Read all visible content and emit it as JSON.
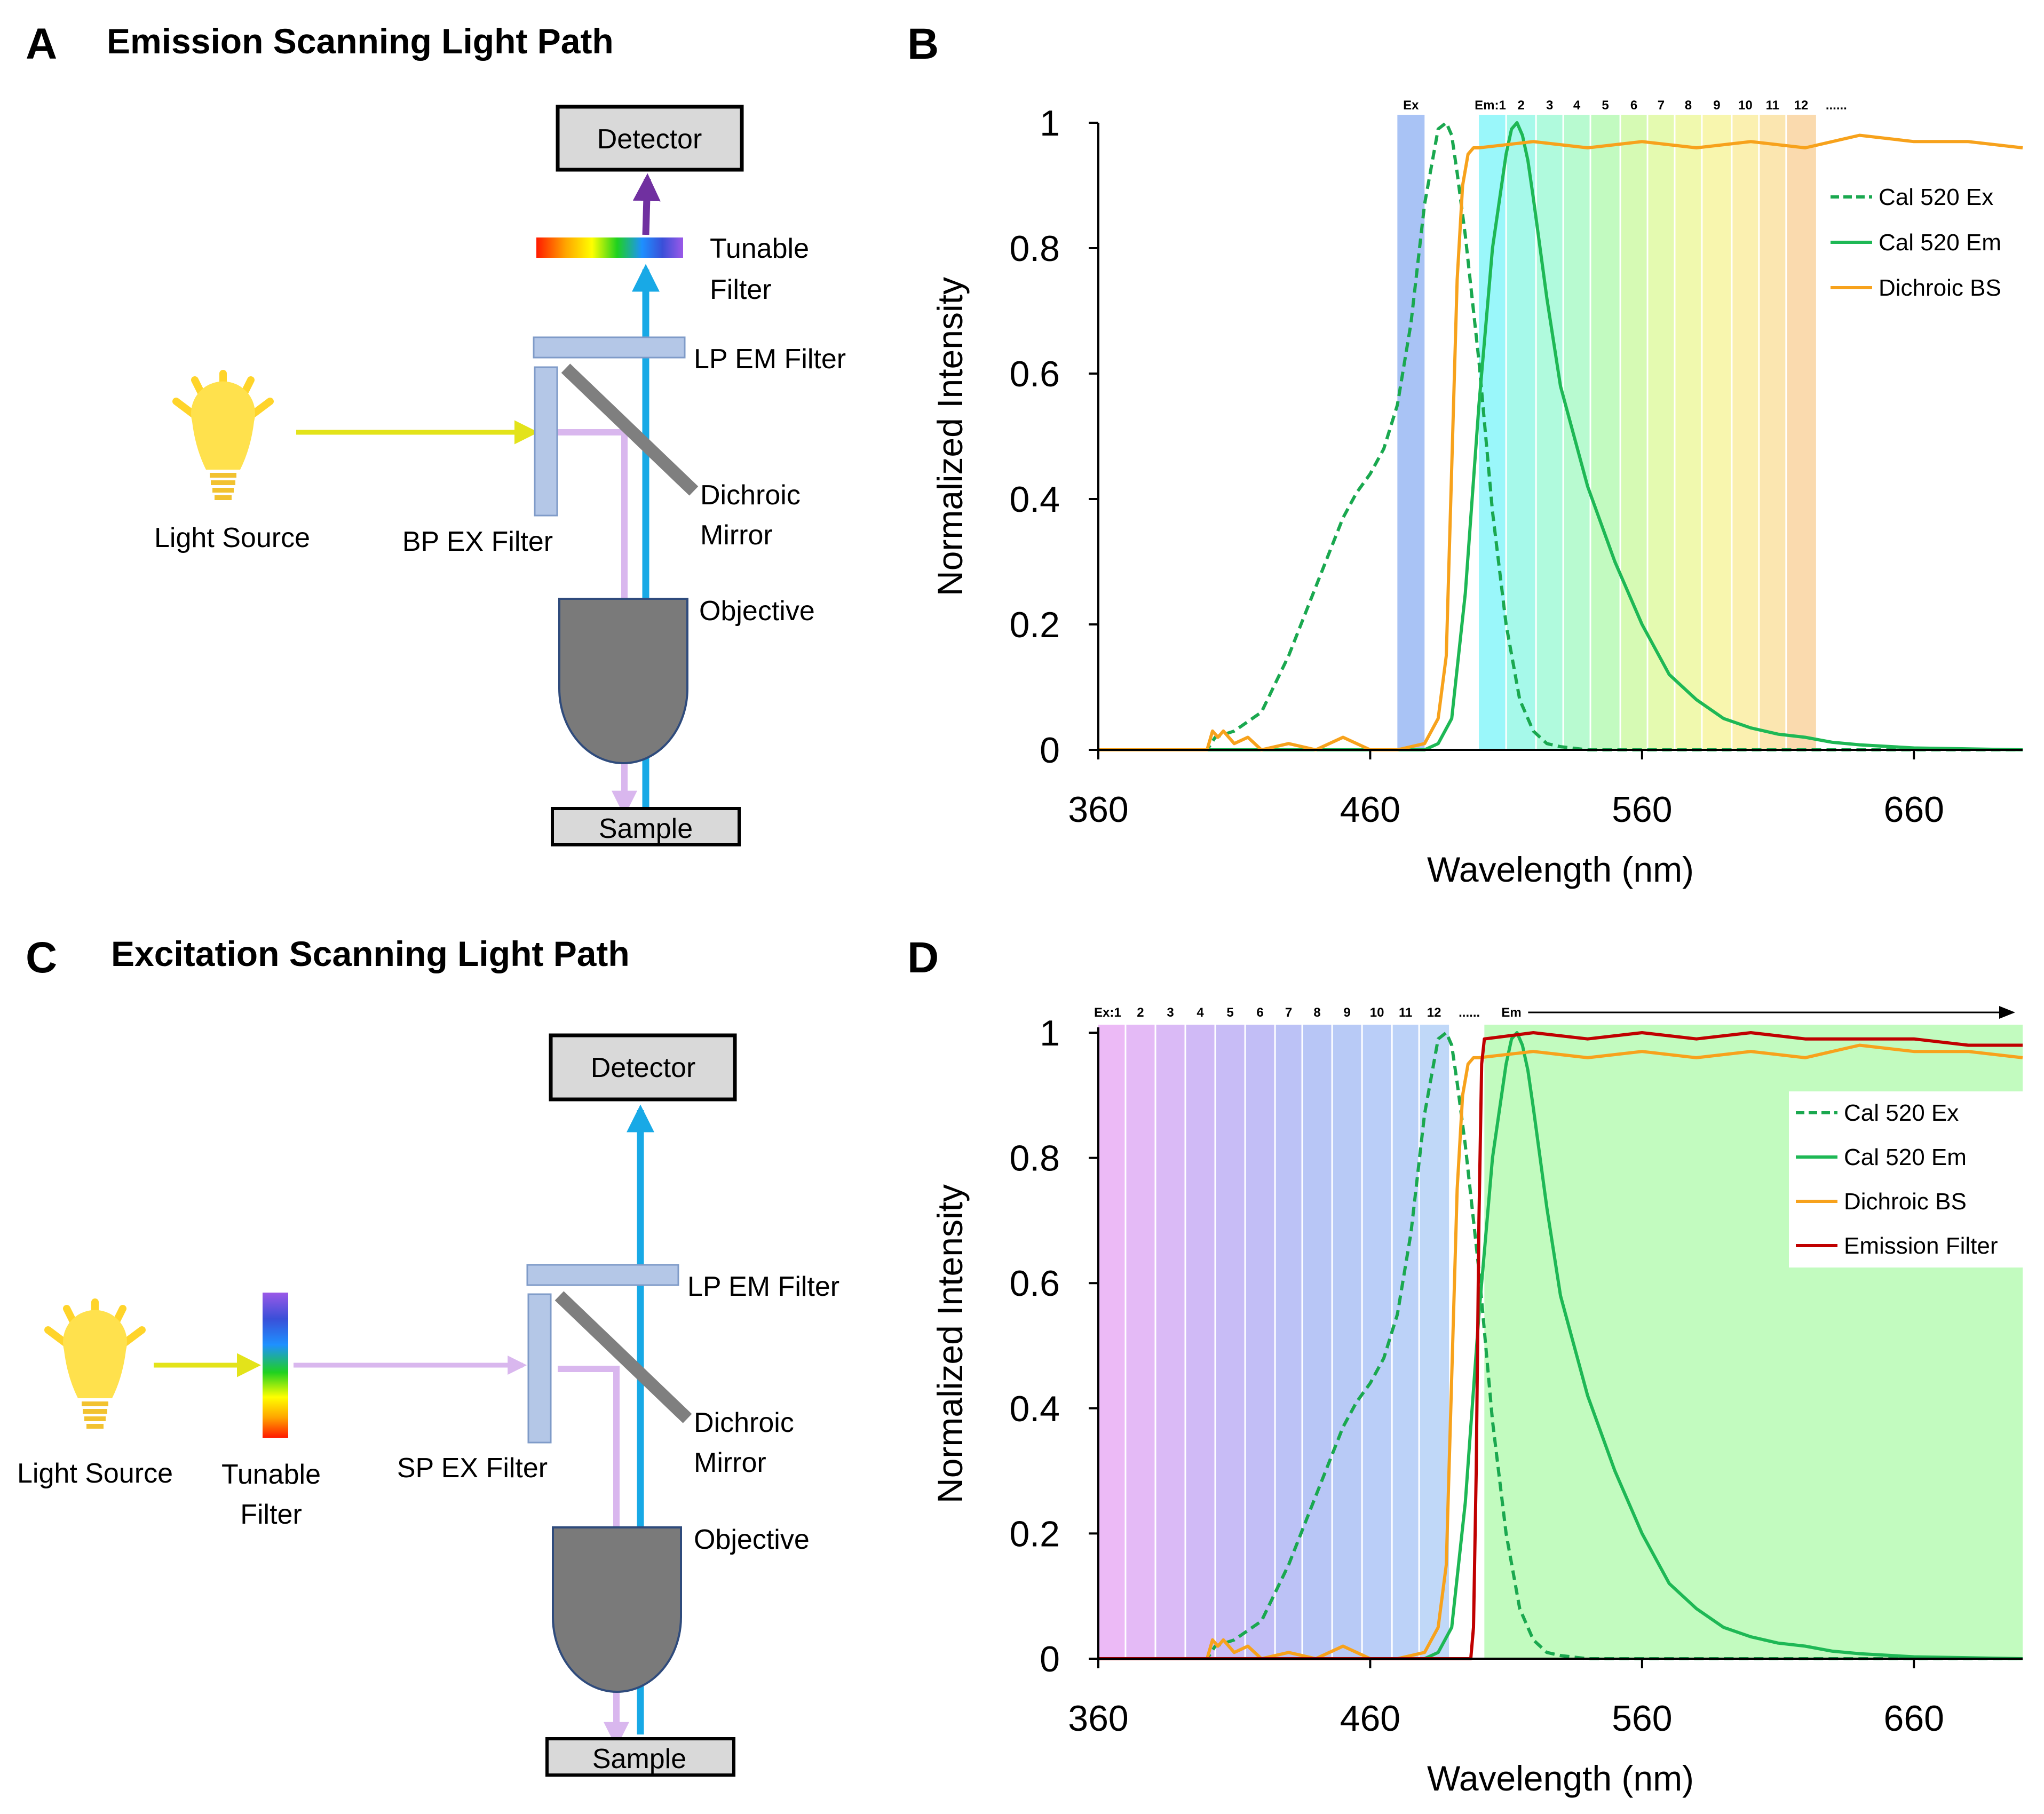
{
  "panels": {
    "a": {
      "letter": "A",
      "title": "Emission Scanning Light Path"
    },
    "b": {
      "letter": "B"
    },
    "c": {
      "letter": "C",
      "title": "Excitation Scanning Light Path"
    },
    "d": {
      "letter": "D"
    }
  },
  "diagram_a": {
    "detector": "Detector",
    "tunable_filter": [
      "Tunable",
      "Filter"
    ],
    "lp_em_filter": "LP EM Filter",
    "dichroic_mirror": [
      "Dichroic",
      "Mirror"
    ],
    "bp_ex_filter": "BP EX Filter",
    "light_source": "Light Source",
    "objective": "Objective",
    "sample": "Sample"
  },
  "diagram_c": {
    "detector": "Detector",
    "lp_em_filter": "LP EM Filter",
    "dichroic_mirror": [
      "Dichroic",
      "Mirror"
    ],
    "sp_ex_filter": "SP EX Filter",
    "tunable_filter": [
      "Tunable",
      "Filter"
    ],
    "light_source": "Light Source",
    "objective": "Objective",
    "sample": "Sample"
  },
  "colors": {
    "ex_dashed": "#1aa84f",
    "em_solid": "#1eb855",
    "dichroic": "#f7a21c",
    "emission_filter": "#c00000",
    "excitation_beam": "#d9b7ee",
    "emission_beam": "#18a9e6",
    "detected_beam": "#7030a0",
    "source_beam": "#e3e31a",
    "component_fill": "#b4c7e7",
    "objective": "#7a7a7a"
  },
  "chart_data": [
    {
      "id": "B",
      "type": "line",
      "xlabel": "Wavelength (nm)",
      "ylabel": "Normalized Intensity",
      "xlim": [
        360,
        700
      ],
      "ylim": [
        0,
        1
      ],
      "xticks": [
        "360",
        "460",
        "560",
        "660"
      ],
      "yticks": [
        "0",
        "0.2",
        "0.4",
        "0.6",
        "0.8",
        "1"
      ],
      "ex_band": {
        "label": "Ex",
        "range": [
          470,
          480
        ],
        "color": "#a9c3f5"
      },
      "em_prefix": "Em:",
      "em_bands": [
        {
          "label": "1",
          "range": [
            500,
            510
          ],
          "color": "#9af7fa"
        },
        {
          "label": "2",
          "range": [
            510,
            521
          ],
          "color": "#a6f9ea"
        },
        {
          "label": "3",
          "range": [
            521,
            531
          ],
          "color": "#b0fadd"
        },
        {
          "label": "4",
          "range": [
            531,
            541
          ],
          "color": "#b8fad0"
        },
        {
          "label": "5",
          "range": [
            541,
            552
          ],
          "color": "#c2fac0"
        },
        {
          "label": "6",
          "range": [
            552,
            562
          ],
          "color": "#d6fab4"
        },
        {
          "label": "7",
          "range": [
            562,
            572
          ],
          "color": "#e4fab0"
        },
        {
          "label": "8",
          "range": [
            572,
            582
          ],
          "color": "#f0f9ae"
        },
        {
          "label": "9",
          "range": [
            582,
            593
          ],
          "color": "#f8f6ae"
        },
        {
          "label": "10",
          "range": [
            593,
            603
          ],
          "color": "#fbf0b0"
        },
        {
          "label": "11",
          "range": [
            603,
            613
          ],
          "color": "#fbe6b0"
        },
        {
          "label": "12",
          "range": [
            613,
            624
          ],
          "color": "#fadaae"
        }
      ],
      "ellipsis": "......",
      "legend": [
        "Cal 520 Ex",
        "Cal 520 Em",
        "Dichroic BS"
      ],
      "series": [
        {
          "name": "Cal 520 Ex",
          "style": "dashed",
          "x": [
            360,
            400,
            403,
            410,
            420,
            430,
            440,
            450,
            455,
            460,
            465,
            470,
            475,
            480,
            485,
            488,
            490,
            492,
            495,
            500,
            505,
            510,
            515,
            520,
            525,
            530,
            540,
            700
          ],
          "y": [
            0.0,
            0.0,
            0.02,
            0.03,
            0.06,
            0.15,
            0.26,
            0.37,
            0.41,
            0.44,
            0.48,
            0.55,
            0.68,
            0.87,
            0.99,
            1.0,
            0.98,
            0.92,
            0.82,
            0.62,
            0.38,
            0.2,
            0.08,
            0.03,
            0.01,
            0.005,
            0.0,
            0.0
          ]
        },
        {
          "name": "Cal 520 Em",
          "style": "solid",
          "x": [
            360,
            480,
            485,
            490,
            495,
            500,
            505,
            510,
            512,
            514,
            516,
            518,
            520,
            525,
            530,
            540,
            550,
            560,
            570,
            580,
            590,
            600,
            610,
            620,
            630,
            640,
            660,
            700
          ],
          "y": [
            0.0,
            0.0,
            0.01,
            0.05,
            0.25,
            0.55,
            0.8,
            0.95,
            0.99,
            1.0,
            0.98,
            0.94,
            0.88,
            0.72,
            0.58,
            0.42,
            0.3,
            0.2,
            0.12,
            0.08,
            0.05,
            0.035,
            0.025,
            0.02,
            0.012,
            0.008,
            0.003,
            0.0
          ]
        },
        {
          "name": "Dichroic BS",
          "style": "solid",
          "x": [
            360,
            400,
            402,
            404,
            406,
            410,
            415,
            420,
            430,
            440,
            450,
            460,
            470,
            480,
            485,
            488,
            490,
            492,
            494,
            496,
            498,
            500,
            520,
            540,
            560,
            580,
            600,
            620,
            640,
            660,
            680,
            700
          ],
          "y": [
            0.0,
            0.0,
            0.03,
            0.02,
            0.03,
            0.01,
            0.02,
            0.0,
            0.01,
            0.0,
            0.02,
            0.0,
            0.0,
            0.01,
            0.05,
            0.15,
            0.45,
            0.75,
            0.9,
            0.95,
            0.96,
            0.96,
            0.97,
            0.96,
            0.97,
            0.96,
            0.97,
            0.96,
            0.98,
            0.97,
            0.97,
            0.96
          ]
        }
      ]
    },
    {
      "id": "D",
      "type": "line",
      "xlabel": "Wavelength (nm)",
      "ylabel": "Normalized Intensity",
      "xlim": [
        360,
        700
      ],
      "ylim": [
        0,
        1
      ],
      "xticks": [
        "360",
        "460",
        "560",
        "660"
      ],
      "yticks": [
        "0",
        "0.2",
        "0.4",
        "0.6",
        "0.8",
        "1"
      ],
      "ex_prefix": "Ex:",
      "ex_bands": [
        {
          "label": "1",
          "range": [
            360,
            370
          ],
          "color": "#ecbaf6"
        },
        {
          "label": "2",
          "range": [
            370,
            381
          ],
          "color": "#e4baf6"
        },
        {
          "label": "3",
          "range": [
            381,
            392
          ],
          "color": "#dabaf6"
        },
        {
          "label": "4",
          "range": [
            392,
            403
          ],
          "color": "#d0baf6"
        },
        {
          "label": "5",
          "range": [
            403,
            414
          ],
          "color": "#c8bcf6"
        },
        {
          "label": "6",
          "range": [
            414,
            425
          ],
          "color": "#c2bef6"
        },
        {
          "label": "7",
          "range": [
            425,
            435
          ],
          "color": "#bcc2f6"
        },
        {
          "label": "8",
          "range": [
            435,
            446
          ],
          "color": "#b8c6f6"
        },
        {
          "label": "9",
          "range": [
            446,
            457
          ],
          "color": "#b8caf6"
        },
        {
          "label": "10",
          "range": [
            457,
            468
          ],
          "color": "#bacef8"
        },
        {
          "label": "11",
          "range": [
            468,
            478
          ],
          "color": "#bcd2f8"
        },
        {
          "label": "12",
          "range": [
            478,
            489
          ],
          "color": "#c0d8f8"
        }
      ],
      "ellipsis": "......",
      "em_label": "Em",
      "em_band": {
        "range": [
          502,
          700
        ],
        "color": "#c2fbbf"
      },
      "legend": [
        "Cal 520 Ex",
        "Cal 520 Em",
        "Dichroic BS",
        "Emission Filter"
      ],
      "series": [
        {
          "name": "Cal 520 Ex",
          "style": "dashed",
          "x": [
            360,
            400,
            403,
            410,
            420,
            430,
            440,
            450,
            455,
            460,
            465,
            470,
            475,
            480,
            485,
            488,
            490,
            492,
            495,
            500,
            505,
            510,
            515,
            520,
            525,
            530,
            540,
            700
          ],
          "y": [
            0.0,
            0.0,
            0.02,
            0.03,
            0.06,
            0.15,
            0.26,
            0.37,
            0.41,
            0.44,
            0.48,
            0.55,
            0.68,
            0.87,
            0.99,
            1.0,
            0.98,
            0.92,
            0.82,
            0.62,
            0.38,
            0.2,
            0.08,
            0.03,
            0.01,
            0.005,
            0.0,
            0.0
          ]
        },
        {
          "name": "Cal 520 Em",
          "style": "solid",
          "x": [
            360,
            480,
            485,
            490,
            495,
            500,
            505,
            510,
            512,
            514,
            516,
            518,
            520,
            525,
            530,
            540,
            550,
            560,
            570,
            580,
            590,
            600,
            610,
            620,
            630,
            640,
            660,
            700
          ],
          "y": [
            0.0,
            0.0,
            0.01,
            0.05,
            0.25,
            0.55,
            0.8,
            0.95,
            0.99,
            1.0,
            0.98,
            0.94,
            0.88,
            0.72,
            0.58,
            0.42,
            0.3,
            0.2,
            0.12,
            0.08,
            0.05,
            0.035,
            0.025,
            0.02,
            0.012,
            0.008,
            0.003,
            0.0
          ]
        },
        {
          "name": "Dichroic BS",
          "style": "solid",
          "x": [
            360,
            400,
            402,
            404,
            406,
            410,
            415,
            420,
            430,
            440,
            450,
            460,
            470,
            480,
            485,
            488,
            490,
            492,
            494,
            496,
            498,
            500,
            520,
            540,
            560,
            580,
            600,
            620,
            640,
            660,
            680,
            700
          ],
          "y": [
            0.0,
            0.0,
            0.03,
            0.02,
            0.03,
            0.01,
            0.02,
            0.0,
            0.01,
            0.0,
            0.02,
            0.0,
            0.0,
            0.01,
            0.05,
            0.15,
            0.45,
            0.75,
            0.9,
            0.95,
            0.96,
            0.96,
            0.97,
            0.96,
            0.97,
            0.96,
            0.97,
            0.96,
            0.98,
            0.97,
            0.97,
            0.96
          ]
        },
        {
          "name": "Emission Filter",
          "style": "solid",
          "x": [
            360,
            497,
            498,
            499,
            500,
            501,
            502,
            520,
            540,
            560,
            580,
            600,
            620,
            640,
            660,
            680,
            700
          ],
          "y": [
            0.0,
            0.0,
            0.05,
            0.3,
            0.7,
            0.95,
            0.99,
            1.0,
            0.99,
            1.0,
            0.99,
            1.0,
            0.99,
            0.99,
            0.99,
            0.98,
            0.98
          ]
        }
      ]
    }
  ]
}
